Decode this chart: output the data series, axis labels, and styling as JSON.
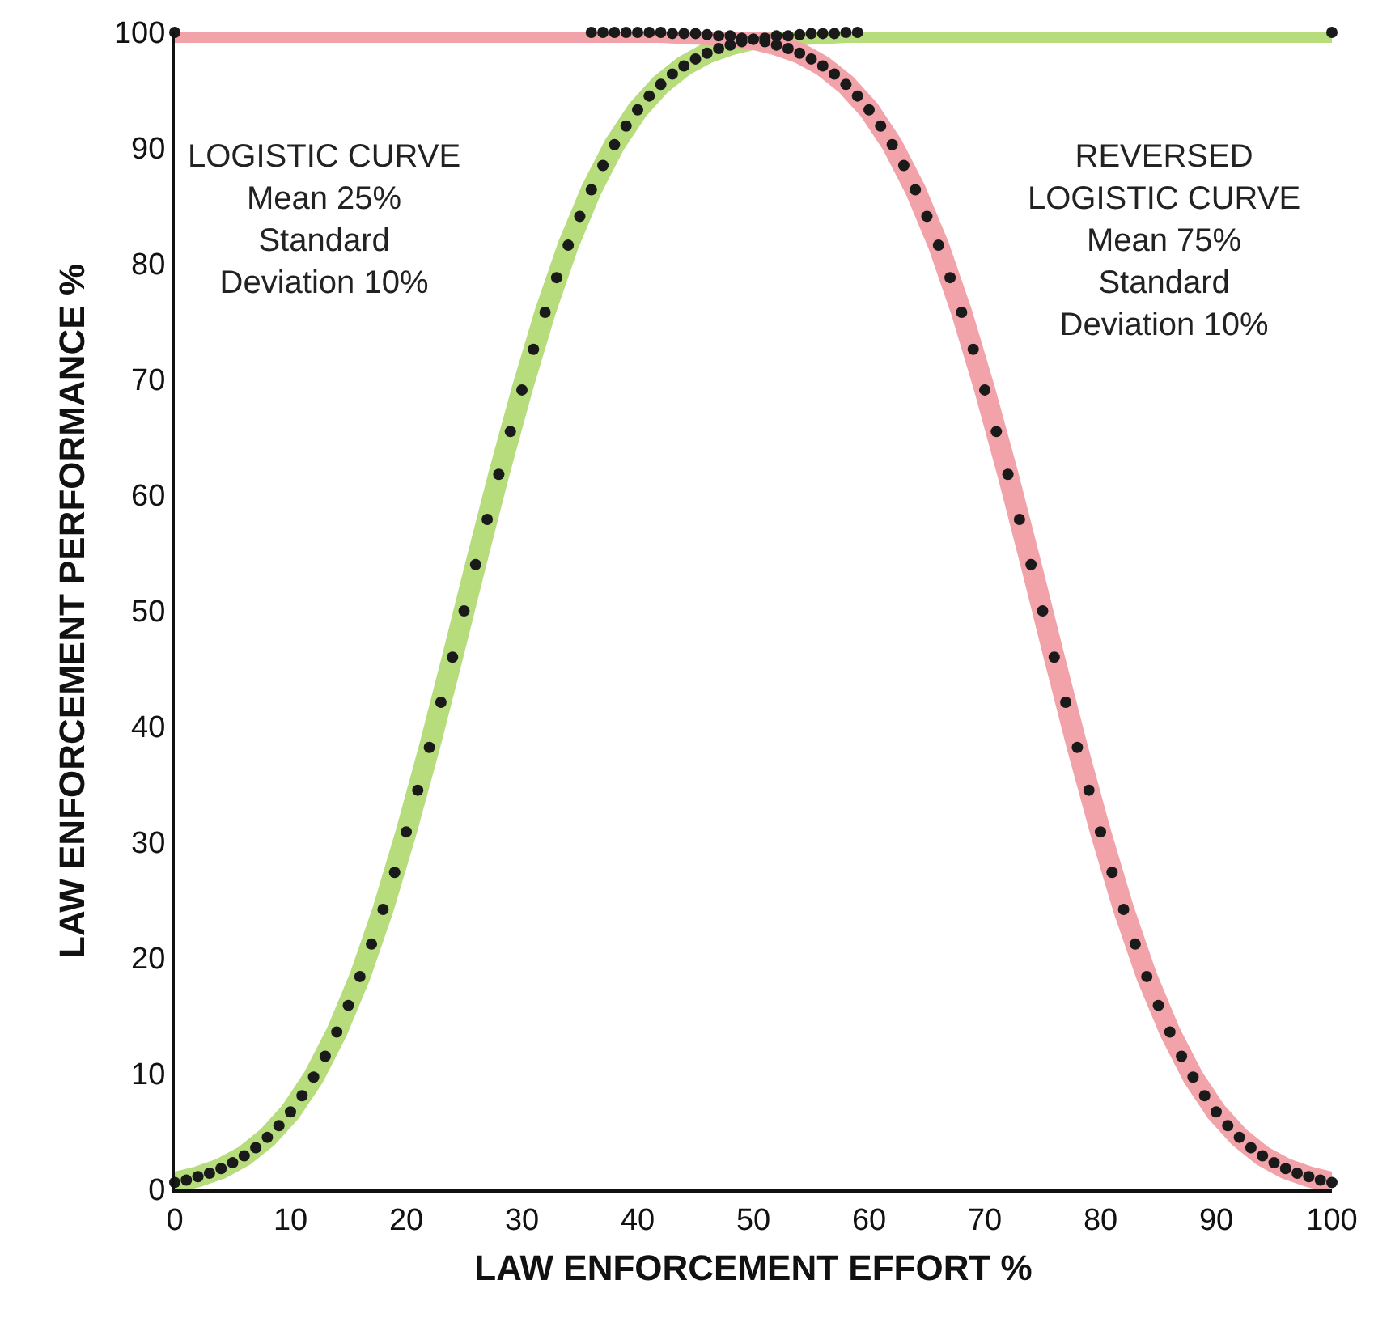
{
  "chart_data": {
    "type": "line",
    "xlabel": "LAW ENFORCEMENT EFFORT %",
    "ylabel": "LAW ENFORCEMENT PERFORMANCE %",
    "xlim": [
      0,
      100
    ],
    "ylim": [
      0,
      100
    ],
    "xticks": [
      0,
      10,
      20,
      30,
      40,
      50,
      60,
      70,
      80,
      90,
      100
    ],
    "yticks": [
      0,
      10,
      20,
      30,
      40,
      50,
      60,
      70,
      80,
      90,
      100
    ],
    "grid": false,
    "annotations": [
      "LOGISTIC CURVE\nMean 25%\nStandard\nDeviation 10%",
      "REVERSED\nLOGISTIC CURVE\nMean 75%\nStandard\nDeviation 10%"
    ],
    "series": [
      {
        "color": "#b6dc7c",
        "x": [
          0,
          2,
          4,
          6,
          8,
          10,
          12,
          14,
          16,
          18,
          20,
          22,
          24,
          26,
          28,
          30,
          32,
          34,
          36,
          38,
          40,
          42,
          44,
          46,
          48,
          50,
          52,
          54,
          56,
          58,
          60,
          100
        ],
        "values": [
          0.6,
          1.1,
          1.8,
          2.9,
          4.5,
          6.7,
          9.7,
          13.6,
          18.4,
          24.2,
          30.9,
          38.2,
          46.0,
          54.0,
          61.8,
          69.1,
          75.8,
          81.6,
          86.4,
          90.3,
          93.3,
          95.5,
          97.1,
          98.2,
          98.9,
          99.4,
          99.7,
          99.8,
          99.9,
          100,
          100,
          100
        ]
      },
      {
        "color": "#f2a3aa",
        "x": [
          0,
          40,
          42,
          44,
          46,
          48,
          50,
          52,
          54,
          56,
          58,
          60,
          62,
          64,
          66,
          68,
          70,
          72,
          74,
          76,
          78,
          80,
          82,
          84,
          86,
          88,
          90,
          92,
          94,
          96,
          98,
          100
        ],
        "values": [
          100,
          100,
          100,
          99.9,
          99.8,
          99.7,
          99.4,
          98.9,
          98.2,
          97.1,
          95.5,
          93.3,
          90.3,
          86.4,
          81.6,
          75.8,
          69.1,
          61.8,
          54.0,
          46.0,
          38.2,
          30.9,
          24.2,
          18.4,
          13.6,
          9.7,
          6.7,
          4.5,
          2.9,
          1.8,
          1.1,
          0.6
        ]
      },
      {
        "type": "scatter",
        "color": "#1a1a1a",
        "x": [
          0,
          1,
          2,
          3,
          4,
          5,
          6,
          7,
          8,
          9,
          10,
          11,
          12,
          13,
          14,
          15,
          16,
          17,
          18,
          19,
          20,
          21,
          22,
          23,
          24,
          25,
          26,
          27,
          28,
          29,
          30,
          31,
          32,
          33,
          34,
          35,
          36,
          37,
          38,
          39,
          40,
          41,
          42,
          43,
          44,
          45,
          46,
          47,
          48,
          49,
          50,
          51,
          52,
          53,
          54,
          55,
          56,
          57,
          58,
          59,
          100
        ],
        "values": [
          0.6,
          0.8,
          1.1,
          1.4,
          1.8,
          2.3,
          2.9,
          3.6,
          4.5,
          5.5,
          6.7,
          8.1,
          9.7,
          11.5,
          13.6,
          15.9,
          18.4,
          21.2,
          24.2,
          27.4,
          30.9,
          34.5,
          38.2,
          42.1,
          46.0,
          50,
          54.0,
          57.9,
          61.8,
          65.5,
          69.1,
          72.6,
          75.8,
          78.8,
          81.6,
          84.1,
          86.4,
          88.5,
          90.3,
          91.9,
          93.3,
          94.5,
          95.5,
          96.4,
          97.1,
          97.7,
          98.2,
          98.6,
          98.9,
          99.2,
          99.4,
          99.5,
          99.7,
          99.7,
          99.8,
          99.9,
          99.9,
          99.9,
          100,
          100,
          100
        ]
      },
      {
        "type": "scatter",
        "color": "#1a1a1a",
        "x": [
          0,
          36,
          37,
          38,
          39,
          40,
          41,
          42,
          43,
          44,
          45,
          46,
          47,
          48,
          49,
          50,
          51,
          52,
          53,
          54,
          55,
          56,
          57,
          58,
          59,
          60,
          61,
          62,
          63,
          64,
          65,
          66,
          67,
          68,
          69,
          70,
          71,
          72,
          73,
          74,
          75,
          76,
          77,
          78,
          79,
          80,
          81,
          82,
          83,
          84,
          85,
          86,
          87,
          88,
          89,
          90,
          91,
          92,
          93,
          94,
          95,
          96,
          97,
          98,
          99,
          100
        ],
        "values": [
          100,
          100,
          100,
          100,
          100,
          100,
          100,
          100,
          99.9,
          99.9,
          99.9,
          99.8,
          99.7,
          99.7,
          99.5,
          99.4,
          99.2,
          98.9,
          98.6,
          98.2,
          97.7,
          97.1,
          96.4,
          95.5,
          94.5,
          93.3,
          91.9,
          90.3,
          88.5,
          86.4,
          84.1,
          81.6,
          78.8,
          75.8,
          72.6,
          69.1,
          65.5,
          61.8,
          57.9,
          54.0,
          50,
          46.0,
          42.1,
          38.2,
          34.5,
          30.9,
          27.4,
          24.2,
          21.2,
          18.4,
          15.9,
          13.6,
          11.5,
          9.7,
          8.1,
          6.7,
          5.5,
          4.5,
          3.6,
          2.9,
          2.3,
          1.8,
          1.4,
          1.1,
          0.8,
          0.6
        ]
      }
    ]
  }
}
